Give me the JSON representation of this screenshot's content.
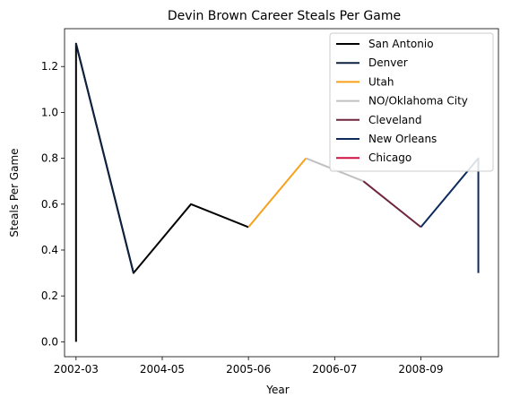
{
  "chart_data": {
    "type": "line",
    "title": "Devin Brown Career Steals Per Game",
    "xlabel": "Year",
    "ylabel": "Steals Per Game",
    "x_tick_labels": [
      "2002-03",
      "2004-05",
      "2005-06",
      "2006-07",
      "2008-09"
    ],
    "y_ticks": [
      0.0,
      0.2,
      0.4,
      0.6,
      0.8,
      1.0,
      1.2
    ],
    "xlim": [
      -0.2,
      7.35
    ],
    "ylim": [
      -0.065,
      1.365
    ],
    "grid": false,
    "legend_position": "top-right",
    "series": [
      {
        "name": "San Antonio",
        "color": "#000000",
        "points": [
          [
            0,
            0.0
          ],
          [
            0,
            1.3
          ],
          [
            1,
            0.3
          ],
          [
            2,
            0.6
          ],
          [
            3,
            0.5
          ]
        ]
      },
      {
        "name": "Denver",
        "color": "#0e2240",
        "points": [
          [
            0,
            1.3
          ],
          [
            1,
            0.3
          ]
        ]
      },
      {
        "name": "Utah",
        "color": "#f9a01b",
        "points": [
          [
            3,
            0.5
          ],
          [
            4,
            0.8
          ]
        ]
      },
      {
        "name": "NO/Oklahoma City",
        "color": "#c0c0c0",
        "points": [
          [
            4,
            0.8
          ],
          [
            5,
            0.7
          ]
        ]
      },
      {
        "name": "Cleveland",
        "color": "#6f263d",
        "points": [
          [
            5,
            0.7
          ],
          [
            6,
            0.5
          ]
        ]
      },
      {
        "name": "New Orleans",
        "color": "#0c2a5b",
        "points": [
          [
            6,
            0.5
          ],
          [
            7,
            0.8
          ],
          [
            7,
            0.3
          ]
        ]
      },
      {
        "name": "Chicago",
        "color": "#ce1141",
        "points": []
      }
    ]
  }
}
